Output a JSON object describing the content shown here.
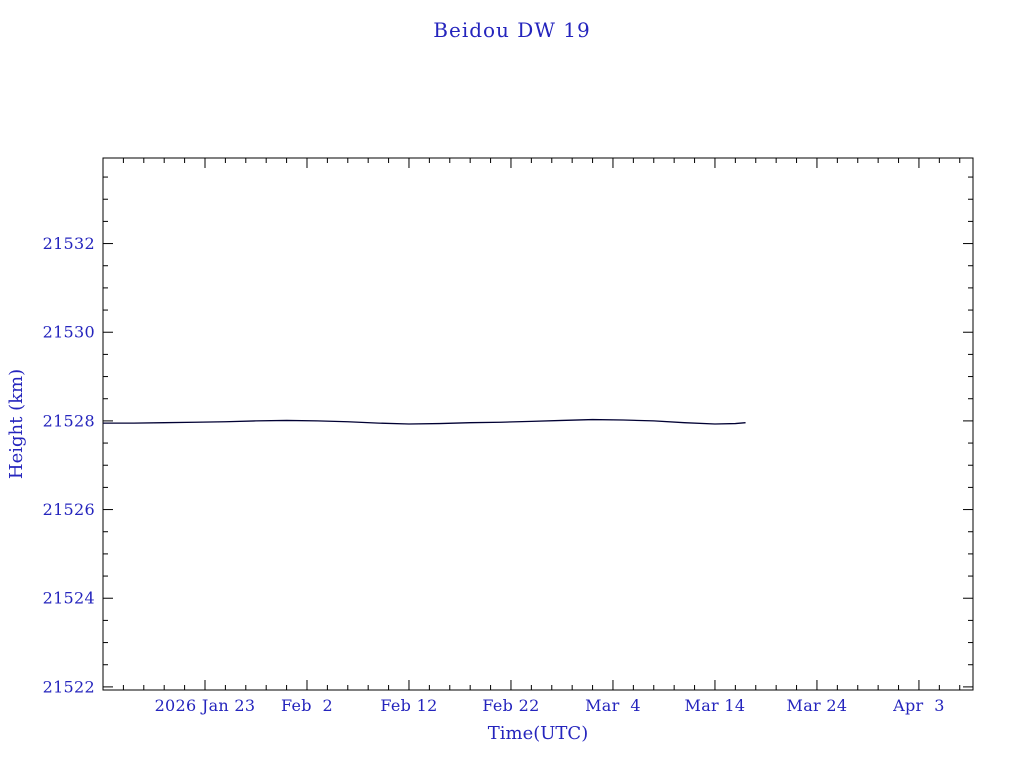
{
  "page": {
    "background": "#ffffff"
  },
  "colors": {
    "text": "#2424bd",
    "axis": "#000000",
    "line": "#000033"
  },
  "chart_data": {
    "type": "line",
    "title": "Beidou DW 19",
    "xlabel": "Time(UTC)",
    "ylabel": "Height (km)",
    "x_unit": "days (0 = left edge, tick day 10 = 2026 Jan 23)",
    "xlim": [
      0,
      85.3
    ],
    "ylim": [
      21521.93,
      21533.93
    ],
    "grid": false,
    "legend": false,
    "x_ticks": [
      {
        "day": 10,
        "label": "2026 Jan 23"
      },
      {
        "day": 20,
        "label": "Feb  2"
      },
      {
        "day": 30,
        "label": "Feb 12"
      },
      {
        "day": 40,
        "label": "Feb 22"
      },
      {
        "day": 50,
        "label": "Mar  4"
      },
      {
        "day": 60,
        "label": "Mar 14"
      },
      {
        "day": 70,
        "label": "Mar 24"
      },
      {
        "day": 80,
        "label": "Apr  3"
      }
    ],
    "x_minor_step": 2,
    "y_ticks": [
      21522,
      21524,
      21526,
      21528,
      21530,
      21532
    ],
    "y_minor_step": 0.5,
    "series": [
      {
        "name": "height",
        "points": [
          [
            0,
            21527.95
          ],
          [
            3,
            21527.95
          ],
          [
            6,
            21527.96
          ],
          [
            9,
            21527.97
          ],
          [
            12,
            21527.98
          ],
          [
            15,
            21528.0
          ],
          [
            18,
            21528.01
          ],
          [
            21,
            21528.0
          ],
          [
            24,
            21527.98
          ],
          [
            27,
            21527.95
          ],
          [
            30,
            21527.93
          ],
          [
            33,
            21527.94
          ],
          [
            36,
            21527.96
          ],
          [
            39,
            21527.97
          ],
          [
            42,
            21527.99
          ],
          [
            45,
            21528.01
          ],
          [
            48,
            21528.03
          ],
          [
            51,
            21528.02
          ],
          [
            54,
            21528.0
          ],
          [
            57,
            21527.96
          ],
          [
            60,
            21527.93
          ],
          [
            62,
            21527.94
          ],
          [
            63,
            21527.96
          ]
        ]
      }
    ]
  }
}
